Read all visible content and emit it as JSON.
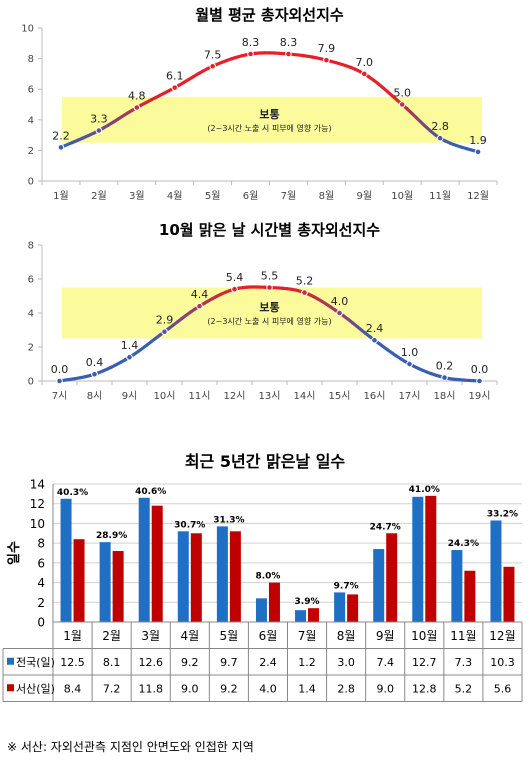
{
  "chart_data": [
    {
      "type": "line",
      "title": "월별 평균 총자외선지수",
      "categories": [
        "1월",
        "2월",
        "3월",
        "4월",
        "5월",
        "6월",
        "7월",
        "8월",
        "9월",
        "10월",
        "11월",
        "12월"
      ],
      "values": [
        2.2,
        3.3,
        4.8,
        6.1,
        7.5,
        8.3,
        8.3,
        7.9,
        7.0,
        5.0,
        2.8,
        1.9
      ],
      "ylim": [
        0,
        10
      ],
      "yticks": [
        0,
        2,
        4,
        6,
        8,
        10
      ],
      "band": {
        "from": 2.5,
        "to": 5.5,
        "label": "보통",
        "note": "(2~3시간 노출 시 피부에 영향 가능)"
      },
      "colors": {
        "low": "#3a5fb0",
        "high": "#e6202a",
        "band": "#fbfb9b",
        "mid": "#8a4fa0"
      }
    },
    {
      "type": "line",
      "title": "10월 맑은 날 시간별 총자외선지수",
      "categories": [
        "7시",
        "8시",
        "9시",
        "10시",
        "11시",
        "12시",
        "13시",
        "14시",
        "15시",
        "16시",
        "17시",
        "18시",
        "19시"
      ],
      "values": [
        0.0,
        0.4,
        1.4,
        2.9,
        4.4,
        5.4,
        5.5,
        5.2,
        4.0,
        2.4,
        1.0,
        0.2,
        0.0
      ],
      "ylim": [
        0,
        8
      ],
      "yticks": [
        0,
        2,
        4,
        6,
        8
      ],
      "band": {
        "from": 2.5,
        "to": 5.5,
        "label": "보통",
        "note": "(2~3시간 노출 시 피부에 영향 가능)"
      },
      "colors": {
        "low": "#3a5fb0",
        "high": "#e6202a",
        "band": "#fbfb9b",
        "mid": "#8a4fa0"
      }
    },
    {
      "type": "bar",
      "title": "최근 5년간 맑은날 일수",
      "ylabel": "일수",
      "categories": [
        "1월",
        "2월",
        "3월",
        "4월",
        "5월",
        "6월",
        "7월",
        "8월",
        "9월",
        "10월",
        "11월",
        "12월"
      ],
      "ylim": [
        0,
        14
      ],
      "yticks": [
        0,
        2,
        4,
        6,
        8,
        10,
        12,
        14
      ],
      "grid": true,
      "series": [
        {
          "name": "전국(일)",
          "color": "#1f6fc4",
          "values": [
            12.5,
            8.1,
            12.6,
            9.2,
            9.7,
            2.4,
            1.2,
            3.0,
            7.4,
            12.7,
            7.3,
            10.3
          ]
        },
        {
          "name": "서산(일)",
          "color": "#c00000",
          "values": [
            8.4,
            7.2,
            11.8,
            9.0,
            9.2,
            4.0,
            1.4,
            2.8,
            9.0,
            12.8,
            5.2,
            5.6
          ]
        }
      ],
      "annotations": [
        "40.3%",
        "28.9%",
        "40.6%",
        "30.7%",
        "31.3%",
        "8.0%",
        "3.9%",
        "9.7%",
        "24.7%",
        "41.0%",
        "24.3%",
        "33.2%"
      ],
      "highlight_index": 9,
      "highlight_color": "#e6202a"
    }
  ],
  "footnote": "※ 서산: 자외선관측 지점인 안면도와 인접한 지역"
}
